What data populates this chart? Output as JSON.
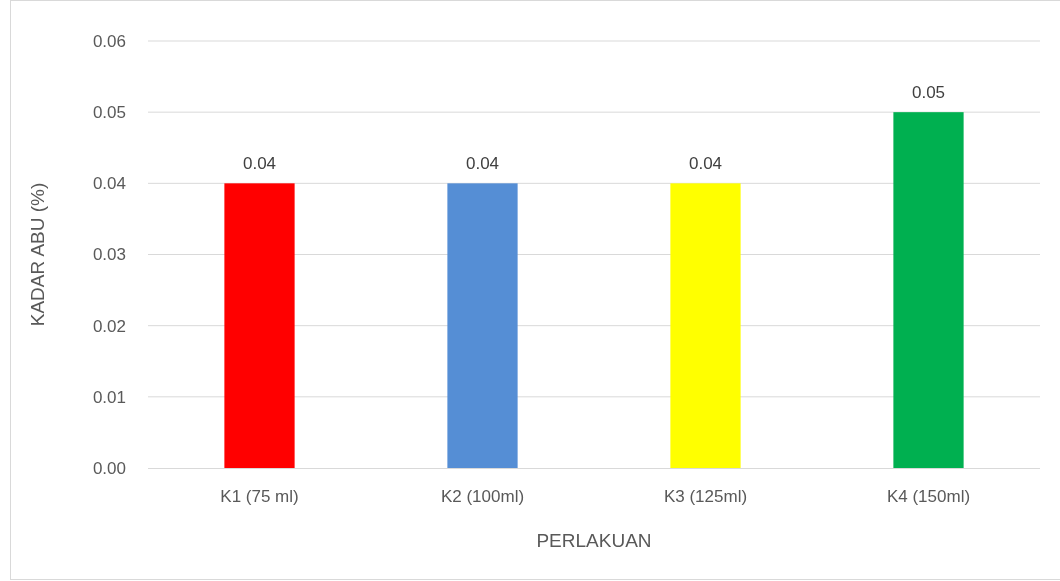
{
  "chart_data": {
    "type": "bar",
    "xlabel": "PERLAKUAN",
    "ylabel": "KADAR ABU (%)",
    "categories": [
      "K1 (75 ml)",
      "K2 (100ml)",
      "K3 (125ml)",
      "K4 (150ml)"
    ],
    "values": [
      0.04,
      0.04,
      0.04,
      0.05
    ],
    "colors": [
      "#ff0000",
      "#558ed5",
      "#ffff00",
      "#00b050"
    ],
    "ylim": [
      0,
      0.06
    ],
    "yticks": [
      {
        "value": 0,
        "label": "0.00"
      },
      {
        "value": 0.01,
        "label": "0.01"
      },
      {
        "value": 0.02,
        "label": "0.02"
      },
      {
        "value": 0.03,
        "label": "0.03"
      },
      {
        "value": 0.04,
        "label": "0.04"
      },
      {
        "value": 0.05,
        "label": "0.05"
      },
      {
        "value": 0.06,
        "label": "0.06"
      }
    ],
    "grid": "y",
    "data_labels": true,
    "legend": false
  }
}
